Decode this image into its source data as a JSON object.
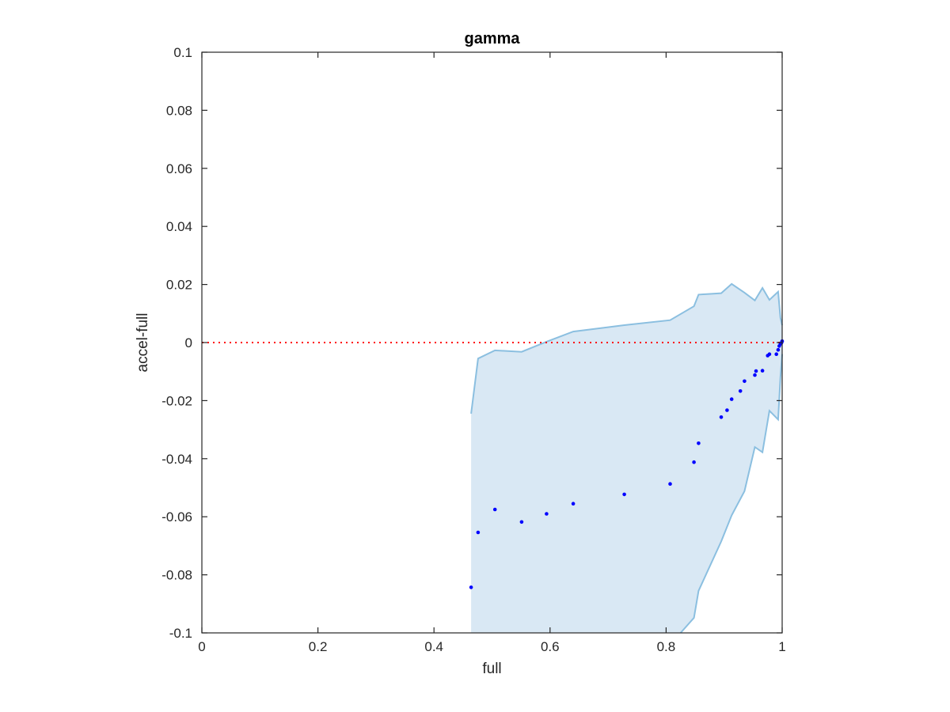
{
  "chart_data": {
    "type": "scatter",
    "title": "gamma",
    "xlabel": "full",
    "ylabel": "accel-full",
    "xlim": [
      0,
      1
    ],
    "ylim": [
      -0.1,
      0.1
    ],
    "xticks": [
      0,
      0.2,
      0.4,
      0.6,
      0.8,
      1
    ],
    "xtick_labels": [
      "0",
      "0.2",
      "0.4",
      "0.6",
      "0.8",
      "1"
    ],
    "yticks": [
      -0.1,
      -0.08,
      -0.06,
      -0.04,
      -0.02,
      0,
      0.02,
      0.04,
      0.06,
      0.08,
      0.1
    ],
    "ytick_labels": [
      "-0.1",
      "-0.08",
      "-0.06",
      "-0.04",
      "-0.02",
      "0",
      "0.02",
      "0.04",
      "0.06",
      "0.08",
      "0.1"
    ],
    "grid": false,
    "legend": "none",
    "reference_line": {
      "y": 0,
      "style": "dotted",
      "color": "#ff0000"
    },
    "band": {
      "fill_color": "#d9e8f4",
      "edge_color": "#8bbfe0",
      "upper": [
        [
          0.464,
          -0.0245
        ],
        [
          0.476,
          -0.0055
        ],
        [
          0.505,
          -0.0027
        ],
        [
          0.551,
          -0.0032
        ],
        [
          0.594,
          0.0003
        ],
        [
          0.64,
          0.0038
        ],
        [
          0.728,
          0.006
        ],
        [
          0.807,
          0.0077
        ],
        [
          0.848,
          0.0125
        ],
        [
          0.856,
          0.0165
        ],
        [
          0.895,
          0.017
        ],
        [
          0.913,
          0.0202
        ],
        [
          0.935,
          0.0172
        ],
        [
          0.953,
          0.0145
        ],
        [
          0.966,
          0.0188
        ],
        [
          0.978,
          0.0147
        ],
        [
          0.993,
          0.0175
        ],
        [
          0.997,
          0.0085
        ],
        [
          1.0,
          0.006
        ]
      ],
      "lower": [
        [
          1.0,
          -0.004
        ],
        [
          0.997,
          -0.012
        ],
        [
          0.993,
          -0.0265
        ],
        [
          0.978,
          -0.0235
        ],
        [
          0.966,
          -0.0378
        ],
        [
          0.953,
          -0.036
        ],
        [
          0.935,
          -0.0512
        ],
        [
          0.913,
          -0.0595
        ],
        [
          0.895,
          -0.0685
        ],
        [
          0.856,
          -0.0855
        ],
        [
          0.848,
          -0.0948
        ],
        [
          0.825,
          -0.1
        ]
      ],
      "x_start": 0.464
    },
    "series": [
      {
        "color": "#0000ff",
        "points": [
          [
            0.464,
            -0.0843
          ],
          [
            0.476,
            -0.0654
          ],
          [
            0.505,
            -0.0575
          ],
          [
            0.551,
            -0.0618
          ],
          [
            0.594,
            -0.059
          ],
          [
            0.64,
            -0.0555
          ],
          [
            0.728,
            -0.0523
          ],
          [
            0.807,
            -0.0487
          ],
          [
            0.848,
            -0.0412
          ],
          [
            0.856,
            -0.0347
          ],
          [
            0.895,
            -0.0257
          ],
          [
            0.905,
            -0.0233
          ],
          [
            0.913,
            -0.0195
          ],
          [
            0.928,
            -0.0167
          ],
          [
            0.935,
            -0.0133
          ],
          [
            0.953,
            -0.0112
          ],
          [
            0.955,
            -0.0098
          ],
          [
            0.966,
            -0.0097
          ],
          [
            0.975,
            -0.0045
          ],
          [
            0.978,
            -0.004
          ],
          [
            0.99,
            -0.004
          ],
          [
            0.993,
            -0.0025
          ],
          [
            0.995,
            -0.0012
          ],
          [
            0.997,
            -0.0005
          ],
          [
            0.999,
            0.0
          ],
          [
            1.0,
            0.0005
          ]
        ]
      }
    ]
  }
}
